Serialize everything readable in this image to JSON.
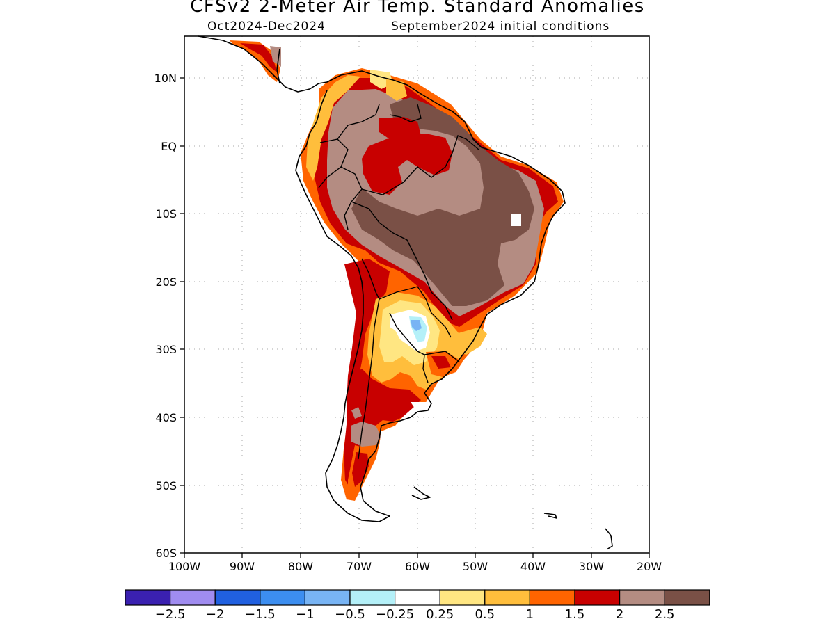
{
  "title": "CFSv2 2-Meter Air Temp. Standard Anomalies",
  "subtitle_period": "Oct2024-Dec2024",
  "subtitle_ic": "September2024 initial conditions",
  "lat_labels": [
    "10N",
    "EQ",
    "10S",
    "20S",
    "30S",
    "40S",
    "50S",
    "60S"
  ],
  "lon_labels": [
    "100W",
    "90W",
    "80W",
    "70W",
    "60W",
    "50W",
    "40W",
    "30W",
    "20W"
  ],
  "colorbar": {
    "colors": [
      "#3a20b0",
      "#a08cf0",
      "#2060e0",
      "#3c8ef0",
      "#78b4f4",
      "#b4f0f8",
      "#ffffff",
      "#ffe682",
      "#ffbe3c",
      "#ff6400",
      "#c80000",
      "#b48c82",
      "#7a5046"
    ],
    "labels": [
      "-2.5",
      "-2",
      "-1.5",
      "-1",
      "-0.5",
      "-0.25",
      "0.25",
      "0.5",
      "1",
      "1.5",
      "2",
      "2.5"
    ]
  }
}
